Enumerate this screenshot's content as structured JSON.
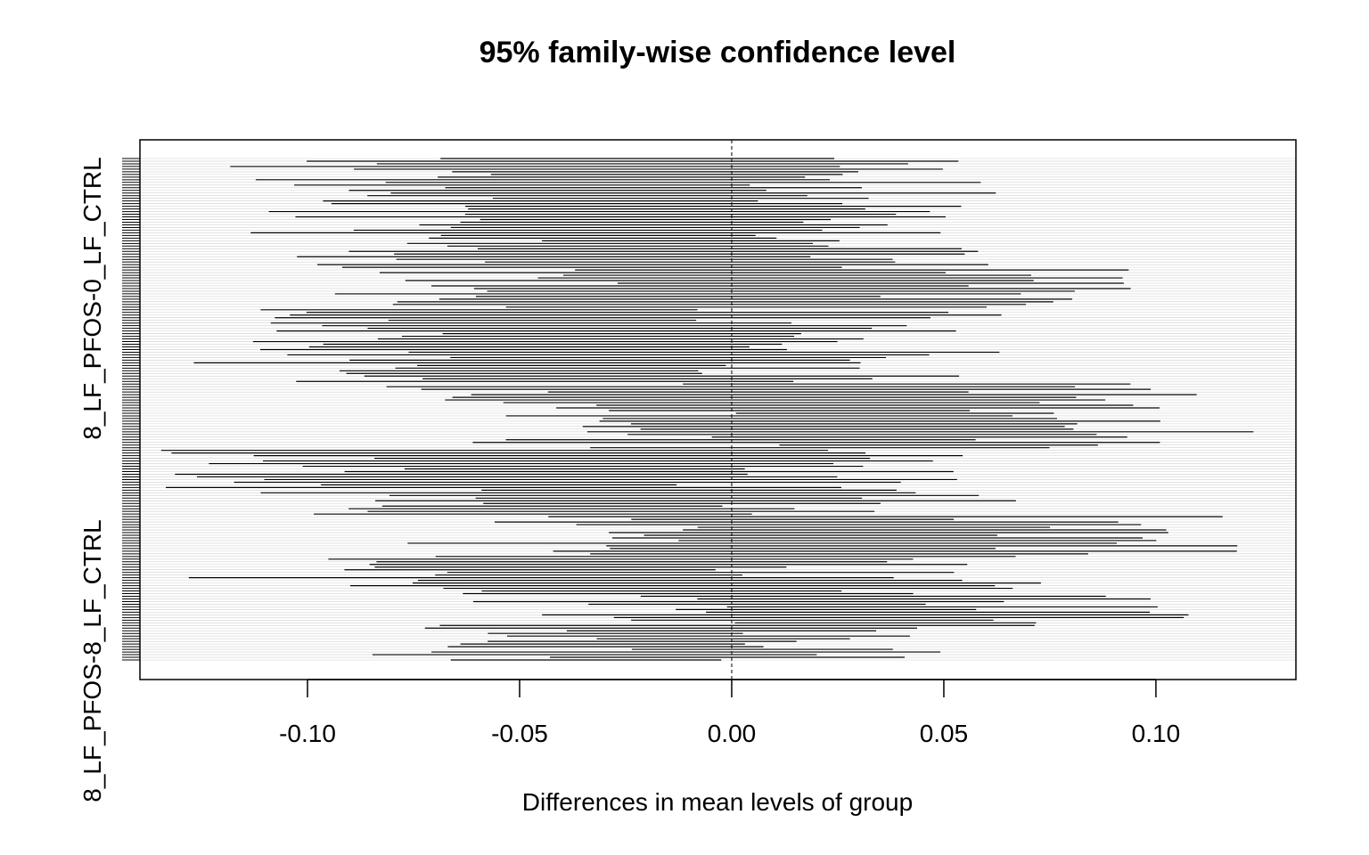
{
  "chart_data": {
    "type": "interval",
    "title": "95% family-wise confidence level",
    "xlabel": "Differences in mean levels of group",
    "ylabel": "",
    "xlim": [
      -0.1395,
      0.133
    ],
    "x_ticks": [
      -0.1,
      -0.05,
      0.0,
      0.05,
      0.1
    ],
    "x_tick_labels": [
      "-0.10",
      "-0.05",
      "0.00",
      "0.05",
      "0.10"
    ],
    "reference_line": 0.0,
    "y_tick_labels_visible": [
      "8_LF_PFOS-8_LF_CTRL",
      "8_LF_PFOS-0_LF_CTRL"
    ],
    "comparison_count": 190,
    "band_structure": [
      {
        "rows": 15,
        "center": -0.03,
        "spread": 0.055
      },
      {
        "rows": 15,
        "center": -0.028,
        "spread": 0.06
      },
      {
        "rows": 12,
        "center": -0.018,
        "spread": 0.058
      },
      {
        "rows": 15,
        "center": 0.008,
        "spread": 0.06
      },
      {
        "rows": 15,
        "center": -0.035,
        "spread": 0.06
      },
      {
        "rows": 13,
        "center": -0.03,
        "spread": 0.06
      },
      {
        "rows": 10,
        "center": 0.02,
        "spread": 0.062
      },
      {
        "rows": 15,
        "center": 0.025,
        "spread": 0.06
      },
      {
        "rows": 15,
        "center": -0.04,
        "spread": 0.06
      },
      {
        "rows": 10,
        "center": -0.025,
        "spread": 0.06
      },
      {
        "rows": 15,
        "center": 0.03,
        "spread": 0.06
      },
      {
        "rows": 15,
        "center": -0.025,
        "spread": 0.06
      },
      {
        "rows": 12,
        "center": 0.025,
        "spread": 0.055
      },
      {
        "rows": 13,
        "center": -0.01,
        "spread": 0.045
      }
    ],
    "grid": true,
    "legend": "none"
  }
}
